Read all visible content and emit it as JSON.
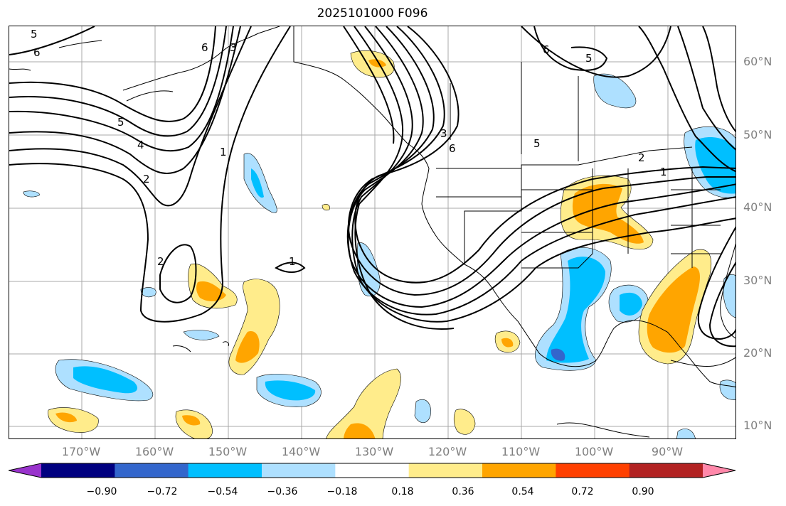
{
  "title": "2025101000 F096",
  "lat_labels": [
    "60°N",
    "50°N",
    "40°N",
    "30°N",
    "20°N",
    "10°N"
  ],
  "lon_labels": [
    "170°W",
    "160°W",
    "150°W",
    "140°W",
    "130°W",
    "120°W",
    "110°W",
    "100°W",
    "90°W"
  ],
  "colorbar": {
    "colors": [
      "#9933cc",
      "#000080",
      "#3366cc",
      "#00bfff",
      "#aee0ff",
      "#ffffff",
      "#ffec8b",
      "#ffa500",
      "#ff4000",
      "#b22222",
      "#ff88aa"
    ],
    "tick_labels": [
      "−0.90",
      "−0.72",
      "−0.54",
      "−0.36",
      "−0.18",
      "0.18",
      "0.36",
      "0.54",
      "0.72",
      "0.90"
    ]
  },
  "contour_labels": {
    "tl_5": "5",
    "tl_6": "6",
    "pac_6": "6",
    "pac_3": "3",
    "pac_5": "5",
    "pac_4": "4",
    "pac_1": "1",
    "pac_2": "2",
    "pac_2b": "2",
    "mid_1": "1",
    "wc_3": "3",
    "wc_6": "6",
    "us_5": "5",
    "us_2": "2",
    "us_1": "1",
    "can_6": "6",
    "can_5": "5"
  }
}
